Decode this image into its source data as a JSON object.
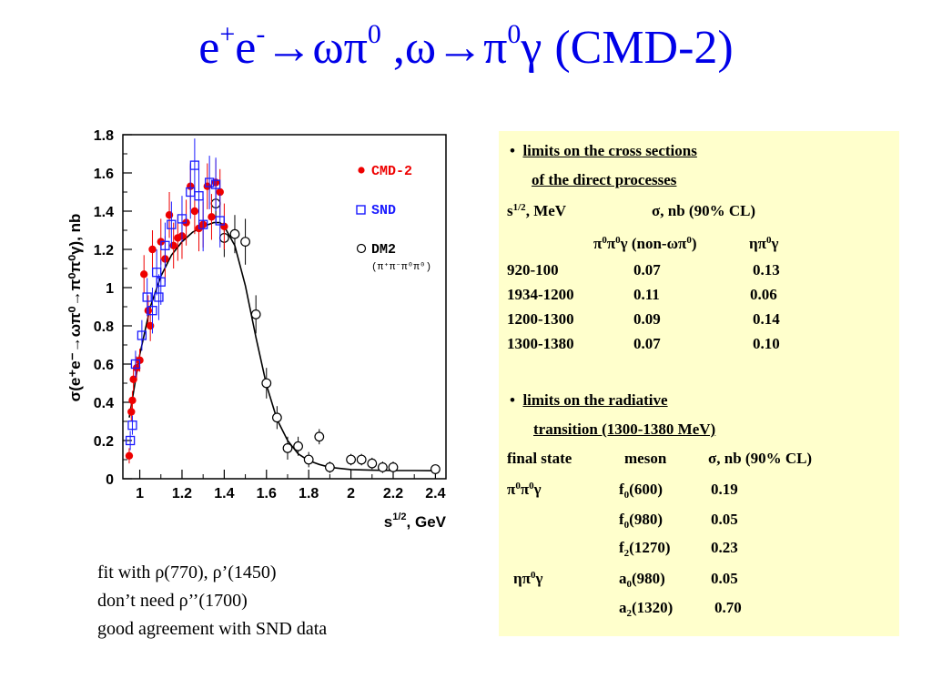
{
  "slide": {
    "title": {
      "e": "e",
      "plus": "+",
      "e2": "e",
      "minus": "-",
      "rest1": "→ωπ",
      "zero1": "0",
      "rest2": " ,ω→π",
      "zero2": "0",
      "rest3": "γ",
      "experiment": "(CMD-2)"
    },
    "notes": [
      "fit with ρ(770), ρ’(1450)",
      "don’t need ρ’’(1700)",
      "good agreement with SND data"
    ],
    "panel": {
      "section1": {
        "bullet": "•",
        "heading_line1": "limits on the cross sections",
        "heading_line2": "of the direct processes",
        "col_s": "s",
        "col_s_exp": "1/2",
        "col_s_unit": ", MeV",
        "col_sigma": "σ, nb (90% CL)",
        "chan1_a": "π",
        "chan1_b": "0",
        "chan1_c": "π",
        "chan1_d": "0",
        "chan1_e": "γ (non-ωπ",
        "chan1_f": "0",
        "chan1_g": ")",
        "chan2_a": "ηπ",
        "chan2_b": "0",
        "chan2_c": "γ",
        "rows": [
          {
            "range": "920-100",
            "v1": "0.07",
            "v2": "0.13"
          },
          {
            "range": "1934-1200",
            "v1": "0.11",
            "v2": "0.06"
          },
          {
            "range": "1200-1300",
            "v1": "0.09",
            "v2": "0.14"
          },
          {
            "range": "1300-1380",
            "v1": "0.07",
            "v2": "0.10"
          }
        ]
      },
      "section2": {
        "bullet": "•",
        "heading_line1": "limits on the radiative",
        "heading_line2": "transition (1300-1380 MeV)",
        "col_state": "final state",
        "col_meson": "meson",
        "col_sigma": "σ, nb (90% CL)",
        "state1_a": "π",
        "state1_b": "0",
        "state1_c": "π",
        "state1_d": "0",
        "state1_e": "γ",
        "state2_a": "ηπ",
        "state2_b": "0",
        "state2_c": "γ",
        "rows": [
          {
            "meson": "f",
            "sub": "0",
            "mass": "(600)",
            "value": "0.19"
          },
          {
            "meson": "f",
            "sub": "0",
            "mass": "(980)",
            "value": "0.05"
          },
          {
            "meson": "f",
            "sub": "2",
            "mass": "(1270)",
            "value": "0.23"
          },
          {
            "meson": "a",
            "sub": "0",
            "mass": "(980)",
            "value": "0.05"
          },
          {
            "meson": "a",
            "sub": "2",
            "mass": "(1320)",
            "value": "0.70"
          }
        ]
      }
    }
  },
  "chart_data": {
    "type": "scatter",
    "title": "",
    "ylabel": "σ(e⁺e⁻→ωπ⁰→π⁰π⁰γ), nb",
    "xlabel_base": "s",
    "xlabel_exp": "1/2",
    "xlabel_unit": ", GeV",
    "xlim": [
      0.92,
      2.45
    ],
    "ylim": [
      0,
      1.8
    ],
    "xticks": [
      1,
      1.2,
      1.4,
      1.6,
      1.8,
      2,
      2.2,
      2.4
    ],
    "xtick_labels": [
      "1",
      "1.2",
      "1.4",
      "1.6",
      "1.8",
      "2",
      "2.2",
      "2.4"
    ],
    "yticks": [
      0,
      0.2,
      0.4,
      0.6,
      0.8,
      1,
      1.2,
      1.4,
      1.6,
      1.8
    ],
    "ytick_labels": [
      "0",
      "0.2",
      "0.4",
      "0.6",
      "0.8",
      "1",
      "1.2",
      "1.4",
      "1.6",
      "1.8"
    ],
    "legend_position": "right",
    "colors": {
      "cmd2": "#ee0000",
      "snd": "#1a1aff",
      "dm2": "#000000",
      "fit": "#000000"
    },
    "series": [
      {
        "name": "CMD-2",
        "marker": "filled-circle",
        "points": [
          {
            "x": 0.95,
            "y": 0.12,
            "e": 0.04
          },
          {
            "x": 0.96,
            "y": 0.35,
            "e": 0.05
          },
          {
            "x": 0.965,
            "y": 0.41,
            "e": 0.05
          },
          {
            "x": 0.97,
            "y": 0.52,
            "e": 0.06
          },
          {
            "x": 0.985,
            "y": 0.58,
            "e": 0.06
          },
          {
            "x": 1.0,
            "y": 0.62,
            "e": 0.06
          },
          {
            "x": 1.02,
            "y": 1.07,
            "e": 0.1
          },
          {
            "x": 1.04,
            "y": 0.88,
            "e": 0.08
          },
          {
            "x": 1.05,
            "y": 0.8,
            "e": 0.08
          },
          {
            "x": 1.06,
            "y": 1.2,
            "e": 0.1
          },
          {
            "x": 1.1,
            "y": 1.24,
            "e": 0.12
          },
          {
            "x": 1.12,
            "y": 1.15,
            "e": 0.12
          },
          {
            "x": 1.14,
            "y": 1.38,
            "e": 0.12
          },
          {
            "x": 1.16,
            "y": 1.22,
            "e": 0.12
          },
          {
            "x": 1.18,
            "y": 1.26,
            "e": 0.12
          },
          {
            "x": 1.2,
            "y": 1.27,
            "e": 0.12
          },
          {
            "x": 1.22,
            "y": 1.34,
            "e": 0.12
          },
          {
            "x": 1.24,
            "y": 1.53,
            "e": 0.12
          },
          {
            "x": 1.26,
            "y": 1.4,
            "e": 0.12
          },
          {
            "x": 1.28,
            "y": 1.31,
            "e": 0.12
          },
          {
            "x": 1.3,
            "y": 1.33,
            "e": 0.12
          },
          {
            "x": 1.32,
            "y": 1.53,
            "e": 0.12
          },
          {
            "x": 1.34,
            "y": 1.37,
            "e": 0.12
          },
          {
            "x": 1.36,
            "y": 1.55,
            "e": 0.12
          },
          {
            "x": 1.38,
            "y": 1.5,
            "e": 0.12
          },
          {
            "x": 1.4,
            "y": 1.32,
            "e": 0.12
          }
        ]
      },
      {
        "name": "SND",
        "marker": "open-square",
        "points": [
          {
            "x": 0.955,
            "y": 0.2,
            "e": 0.05
          },
          {
            "x": 0.965,
            "y": 0.28,
            "e": 0.05
          },
          {
            "x": 0.98,
            "y": 0.6,
            "e": 0.07
          },
          {
            "x": 1.01,
            "y": 0.75,
            "e": 0.08
          },
          {
            "x": 1.035,
            "y": 0.95,
            "e": 0.1
          },
          {
            "x": 1.06,
            "y": 0.88,
            "e": 0.12
          },
          {
            "x": 1.08,
            "y": 1.08,
            "e": 0.12
          },
          {
            "x": 1.09,
            "y": 0.95,
            "e": 0.12
          },
          {
            "x": 1.1,
            "y": 1.03,
            "e": 0.12
          },
          {
            "x": 1.12,
            "y": 1.22,
            "e": 0.12
          },
          {
            "x": 1.15,
            "y": 1.33,
            "e": 0.12
          },
          {
            "x": 1.2,
            "y": 1.36,
            "e": 0.12
          },
          {
            "x": 1.24,
            "y": 1.5,
            "e": 0.14
          },
          {
            "x": 1.26,
            "y": 1.64,
            "e": 0.14
          },
          {
            "x": 1.28,
            "y": 1.48,
            "e": 0.14
          },
          {
            "x": 1.3,
            "y": 1.33,
            "e": 0.14
          },
          {
            "x": 1.33,
            "y": 1.55,
            "e": 0.14
          },
          {
            "x": 1.36,
            "y": 1.54,
            "e": 0.14
          },
          {
            "x": 1.38,
            "y": 1.35,
            "e": 0.14
          }
        ]
      },
      {
        "name": "DM2",
        "sublabel": "(π⁺π⁻π⁰π⁰)",
        "marker": "open-circle",
        "points": [
          {
            "x": 1.36,
            "y": 1.44,
            "e": 0.1
          },
          {
            "x": 1.4,
            "y": 1.26,
            "e": 0.1
          },
          {
            "x": 1.45,
            "y": 1.28,
            "e": 0.1
          },
          {
            "x": 1.5,
            "y": 1.24,
            "e": 0.12
          },
          {
            "x": 1.55,
            "y": 0.86,
            "e": 0.1
          },
          {
            "x": 1.6,
            "y": 0.5,
            "e": 0.08
          },
          {
            "x": 1.65,
            "y": 0.32,
            "e": 0.06
          },
          {
            "x": 1.7,
            "y": 0.16,
            "e": 0.06
          },
          {
            "x": 1.75,
            "y": 0.17,
            "e": 0.05
          },
          {
            "x": 1.8,
            "y": 0.1,
            "e": 0.04
          },
          {
            "x": 1.85,
            "y": 0.22,
            "e": 0.04
          },
          {
            "x": 1.9,
            "y": 0.06,
            "e": 0.03
          },
          {
            "x": 2.0,
            "y": 0.1,
            "e": 0.03
          },
          {
            "x": 2.05,
            "y": 0.1,
            "e": 0.03
          },
          {
            "x": 2.1,
            "y": 0.08,
            "e": 0.03
          },
          {
            "x": 2.15,
            "y": 0.06,
            "e": 0.03
          },
          {
            "x": 2.2,
            "y": 0.06,
            "e": 0.03
          },
          {
            "x": 2.4,
            "y": 0.05,
            "e": 0.02
          }
        ]
      }
    ],
    "fit_curve": {
      "x": [
        0.95,
        1.0,
        1.05,
        1.1,
        1.15,
        1.2,
        1.25,
        1.3,
        1.35,
        1.38,
        1.4,
        1.45,
        1.5,
        1.55,
        1.6,
        1.65,
        1.7,
        1.75,
        1.8,
        1.85,
        1.9,
        2.0,
        2.1,
        2.2,
        2.3,
        2.4
      ],
      "y": [
        0.32,
        0.65,
        0.9,
        1.06,
        1.17,
        1.24,
        1.29,
        1.32,
        1.34,
        1.34,
        1.32,
        1.22,
        1.01,
        0.74,
        0.49,
        0.31,
        0.2,
        0.13,
        0.095,
        0.075,
        0.06,
        0.048,
        0.045,
        0.043,
        0.043,
        0.042
      ]
    }
  }
}
